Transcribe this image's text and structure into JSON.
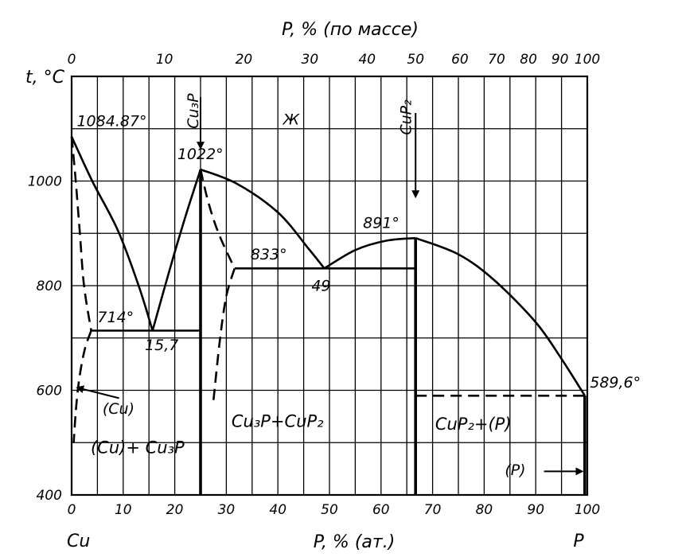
{
  "chart_data": {
    "type": "line",
    "title": "",
    "xlabel": "P, % (ат.)",
    "x2label": "P, % (по массе)",
    "ylabel": "t, °C",
    "xlim": [
      0,
      100
    ],
    "ylim": [
      400,
      1200
    ],
    "grid": true,
    "x_ticks": [
      "0",
      "10",
      "20",
      "30",
      "40",
      "50",
      "60",
      "70",
      "80",
      "90",
      "100"
    ],
    "x2_ticks": [
      {
        "label": "0",
        "at": 0
      },
      {
        "label": "10",
        "at": 18
      },
      {
        "label": "20",
        "at": 33.4
      },
      {
        "label": "30",
        "at": 46.2
      },
      {
        "label": "40",
        "at": 57.3
      },
      {
        "label": "50",
        "at": 66.7
      },
      {
        "label": "60",
        "at": 75.3
      },
      {
        "label": "70",
        "at": 82.4
      },
      {
        "label": "80",
        "at": 88.6
      },
      {
        "label": "90",
        "at": 94.7
      },
      {
        "label": "100",
        "at": 100
      }
    ],
    "y_ticks": [
      {
        "label": "400",
        "at": 400
      },
      {
        "label": "600",
        "at": 600
      },
      {
        "label": "800",
        "at": 800
      },
      {
        "label": "1000",
        "at": 1000
      }
    ],
    "left_element": "Cu",
    "right_element": "P",
    "series": [
      {
        "style": "solid",
        "points": [
          [
            0,
            1084.87
          ],
          [
            4,
            1000
          ],
          [
            9,
            905
          ],
          [
            13,
            800
          ],
          [
            15.7,
            714
          ]
        ]
      },
      {
        "style": "solid",
        "points": [
          [
            15.7,
            714
          ],
          [
            19,
            830
          ],
          [
            22,
            930
          ],
          [
            25,
            1022
          ]
        ]
      },
      {
        "style": "solid",
        "points": [
          [
            25,
            1022
          ],
          [
            32,
            995
          ],
          [
            40,
            940
          ],
          [
            46,
            870
          ],
          [
            49,
            833
          ]
        ]
      },
      {
        "style": "solid",
        "points": [
          [
            49,
            833
          ],
          [
            55,
            868
          ],
          [
            61,
            886
          ],
          [
            66.7,
            891
          ]
        ]
      },
      {
        "style": "solid",
        "points": [
          [
            66.7,
            891
          ],
          [
            75,
            860
          ],
          [
            82,
            810
          ],
          [
            90,
            730
          ],
          [
            95,
            660
          ],
          [
            99.5,
            590
          ]
        ]
      },
      {
        "style": "solid",
        "points": [
          [
            3.8,
            714
          ],
          [
            25,
            714
          ]
        ]
      },
      {
        "style": "solid",
        "points": [
          [
            31.6,
            833
          ],
          [
            66.7,
            833
          ]
        ]
      },
      {
        "style": "solid",
        "points": [
          [
            25,
            400
          ],
          [
            25,
            1022
          ]
        ]
      },
      {
        "style": "solid",
        "points": [
          [
            66.7,
            400
          ],
          [
            66.7,
            891
          ]
        ]
      },
      {
        "style": "solid",
        "points": [
          [
            99.5,
            400
          ],
          [
            99.5,
            590
          ]
        ]
      },
      {
        "style": "dashed",
        "points": [
          [
            0,
            1084.87
          ],
          [
            0.8,
            1000
          ],
          [
            1.6,
            900
          ],
          [
            2.4,
            800
          ],
          [
            3.8,
            714
          ]
        ]
      },
      {
        "style": "dashed",
        "points": [
          [
            3.8,
            714
          ],
          [
            2.6,
            680
          ],
          [
            1.6,
            630
          ],
          [
            0.9,
            570
          ],
          [
            0.4,
            500
          ]
        ]
      },
      {
        "style": "dashed",
        "points": [
          [
            25,
            1022
          ],
          [
            26.5,
            960
          ],
          [
            28.5,
            900
          ],
          [
            31.6,
            833
          ]
        ]
      },
      {
        "style": "dashed",
        "points": [
          [
            31.6,
            833
          ],
          [
            30,
            780
          ],
          [
            28.8,
            700
          ],
          [
            27.5,
            580
          ]
        ]
      },
      {
        "style": "dashed",
        "points": [
          [
            66.7,
            589.6
          ],
          [
            99.5,
            589.6
          ]
        ]
      }
    ],
    "annotations": [
      {
        "text": "1084.87°",
        "x": 1,
        "y": 1105
      },
      {
        "text": "1022°",
        "x": 20.5,
        "y": 1042
      },
      {
        "text": "Ж",
        "x": 41,
        "y": 1108
      },
      {
        "text": "833°",
        "x": 34.7,
        "y": 850
      },
      {
        "text": "49",
        "x": 46.5,
        "y": 790
      },
      {
        "text": "891°",
        "x": 56.5,
        "y": 910
      },
      {
        "text": "714°",
        "x": 5,
        "y": 730
      },
      {
        "text": "15,7",
        "x": 14.2,
        "y": 677
      },
      {
        "text": "589,6°",
        "x": 100.5,
        "y": 605
      },
      {
        "text": "Cu₃P+CuP₂",
        "x": 31,
        "y": 530
      },
      {
        "text": "CuP₂+(P)",
        "x": 70.5,
        "y": 525
      },
      {
        "text": "(Cu)+ Cu₃P",
        "x": 3.7,
        "y": 480
      },
      {
        "text": "(Cu)",
        "x": 6,
        "y": 555
      },
      {
        "text": "(P)",
        "x": 84,
        "y": 438
      },
      {
        "text": "Cu₃P",
        "x": 24.5,
        "y": 1100
      },
      {
        "text": "CuP₂",
        "x": 65.8,
        "y": 1088
      }
    ]
  }
}
